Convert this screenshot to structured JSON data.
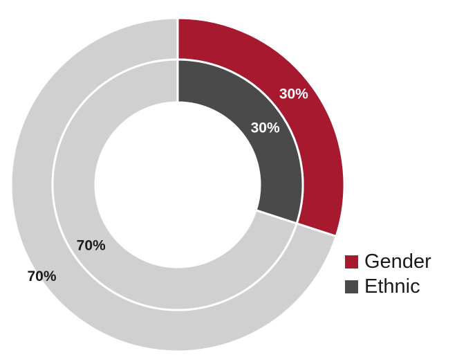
{
  "chart_data": {
    "type": "pie",
    "subtype": "nested-donut",
    "series": [
      {
        "name": "Gender",
        "ring": "outer",
        "color": "#a6192e",
        "slices": [
          {
            "label": "30%",
            "value": 30,
            "color": "#a6192e",
            "label_color": "#ffffff"
          },
          {
            "label": "70%",
            "value": 70,
            "color": "#d0d0d0",
            "label_color": "#1a1a1a"
          }
        ]
      },
      {
        "name": "Ethnic",
        "ring": "inner",
        "color": "#4a4a4a",
        "slices": [
          {
            "label": "30%",
            "value": 30,
            "color": "#4a4a4a",
            "label_color": "#ffffff"
          },
          {
            "label": "70%",
            "value": 70,
            "color": "#d0d0d0",
            "label_color": "#1a1a1a"
          }
        ]
      }
    ],
    "legend": {
      "position": "bottom-right",
      "items": [
        {
          "label": "Gender",
          "color": "#a6192e"
        },
        {
          "label": "Ethnic",
          "color": "#4a4a4a"
        }
      ]
    }
  }
}
